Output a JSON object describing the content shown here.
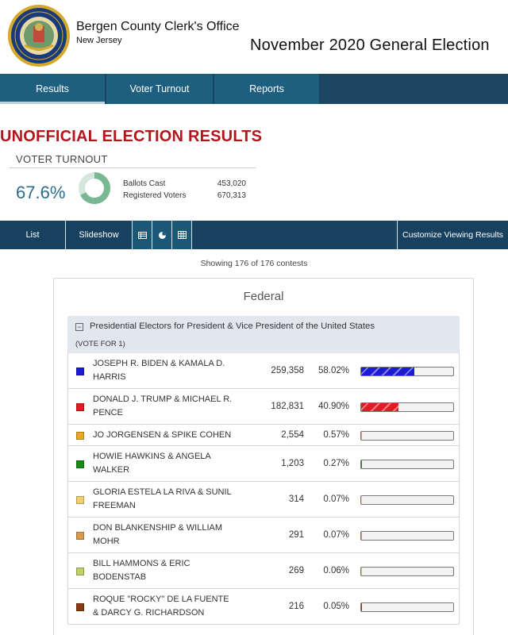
{
  "header": {
    "org_name": "Bergen County Clerk's Office",
    "org_state": "New Jersey",
    "election_title": "November 2020 General Election",
    "seal_text_top": "BERGEN COUNTY",
    "seal_text_bottom": "OFFICE OF THE COUNTY CLERK"
  },
  "nav": {
    "tabs": [
      {
        "label": "Results"
      },
      {
        "label": "Voter Turnout"
      },
      {
        "label": "Reports"
      }
    ]
  },
  "banner": {
    "title": "UNOFFICIAL ELECTION RESULTS",
    "turnout_heading": "VOTER TURNOUT",
    "turnout_pct": "67.6%",
    "turnout_fraction": 0.676,
    "ballots_cast_label": "Ballots Cast",
    "ballots_cast": "453,020",
    "registered_label": "Registered Voters",
    "registered": "670,313"
  },
  "viewbar": {
    "list_label": "List",
    "slideshow_label": "Slideshow",
    "icons": [
      "table-view-icon",
      "pie-chart-icon",
      "grid-view-icon"
    ],
    "customize_label": "Customize Viewing Results"
  },
  "showing_text": "Showing 176 of 176 contests",
  "card": {
    "title": "Federal",
    "contest": {
      "name": "Presidential Electors for President & Vice President of the United States",
      "vote_for": "(VOTE FOR 1)",
      "candidates": [
        {
          "line1": "JOSEPH R. BIDEN & KAMALA D.",
          "line2": "HARRIS",
          "votes": "259,358",
          "pct": "58.02%",
          "share": 0.5802,
          "color": "#1b1bd6",
          "striped": true
        },
        {
          "line1": "DONALD J. TRUMP & MICHAEL R.",
          "line2": "PENCE",
          "votes": "182,831",
          "pct": "40.90%",
          "share": 0.409,
          "color": "#e01b24",
          "striped": true
        },
        {
          "line1": "JO JORGENSEN & SPIKE COHEN",
          "line2": "",
          "votes": "2,554",
          "pct": "0.57%",
          "share": 0.0057,
          "color": "#e8a72a",
          "striped": false
        },
        {
          "line1": "HOWIE HAWKINS & ANGELA",
          "line2": "WALKER",
          "votes": "1,203",
          "pct": "0.27%",
          "share": 0.0027,
          "color": "#1a8a1a",
          "striped": false
        },
        {
          "line1": "GLORIA ESTELA LA RIVA & SUNIL",
          "line2": "FREEMAN",
          "votes": "314",
          "pct": "0.07%",
          "share": 0.0007,
          "color": "#f0d070",
          "striped": false
        },
        {
          "line1": "DON BLANKENSHIP & WILLIAM",
          "line2": "MOHR",
          "votes": "291",
          "pct": "0.07%",
          "share": 0.0007,
          "color": "#d79a4e",
          "striped": false
        },
        {
          "line1": "BILL HAMMONS & ERIC",
          "line2": "BODENSTAB",
          "votes": "269",
          "pct": "0.06%",
          "share": 0.0006,
          "color": "#b9d26a",
          "striped": false
        },
        {
          "line1": "ROQUE \"ROCKY\" DE LA FUENTE",
          "line2": "& DARCY G. RICHARDSON",
          "votes": "216",
          "pct": "0.05%",
          "share": 0.0005,
          "color": "#8a3a12",
          "striped": false
        }
      ]
    }
  }
}
